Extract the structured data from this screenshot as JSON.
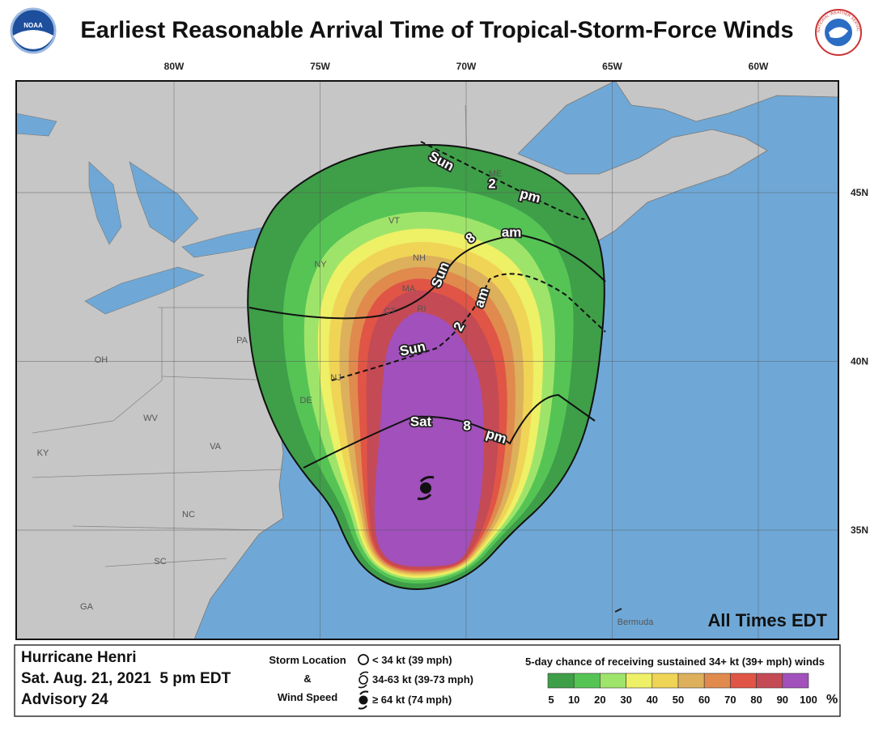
{
  "title": "Earliest Reasonable Arrival Time of Tropical-Storm-Force Winds",
  "logos": {
    "left": "NOAA",
    "right": "NATIONAL WEATHER SERVICE"
  },
  "map": {
    "longitudes": [
      {
        "value": -80,
        "label": "80W"
      },
      {
        "value": -75,
        "label": "75W"
      },
      {
        "value": -70,
        "label": "70W"
      },
      {
        "value": -65,
        "label": "65W"
      },
      {
        "value": -60,
        "label": "60W"
      }
    ],
    "latitudes": [
      {
        "value": 45,
        "label": "45N"
      },
      {
        "value": 40,
        "label": "40N"
      },
      {
        "value": 35,
        "label": "35N"
      }
    ],
    "places": [
      "ME",
      "VT",
      "NH",
      "NY",
      "MA",
      "CT",
      "RI",
      "PA",
      "NJ",
      "DE",
      "OH",
      "WV",
      "VA",
      "KY",
      "NC",
      "SC",
      "GA",
      "Bermuda"
    ],
    "arrival_times": [
      {
        "day": "Sun",
        "hour": "2",
        "period": "pm"
      },
      {
        "day": "Sun",
        "hour": "8",
        "period": "am"
      },
      {
        "day": "Sun",
        "hour": "2",
        "period": "am"
      },
      {
        "day": "Sat",
        "hour": "8",
        "period": "pm"
      }
    ],
    "note": "All Times EDT"
  },
  "legend": {
    "storm": {
      "name": "Hurricane Henri",
      "date": "Sat. Aug. 21, 2021  5 pm EDT",
      "advisory": "Advisory 24"
    },
    "key": {
      "title": [
        "Storm Location",
        "&",
        "Wind Speed"
      ],
      "items": [
        "< 34 kt (39 mph)",
        "34-63 kt (39-73 mph)",
        "≥ 64 kt (74 mph)"
      ]
    },
    "probability": {
      "title": "5-day chance of receiving sustained 34+ kt (39+ mph) winds",
      "ticks": [
        5,
        10,
        20,
        30,
        40,
        50,
        60,
        70,
        80,
        90,
        100
      ],
      "unit": "%",
      "colors": [
        "#3f9e48",
        "#55c455",
        "#9fe46a",
        "#eef066",
        "#f0d456",
        "#ddb05c",
        "#e08a4e",
        "#e05545",
        "#c44a55",
        "#a150bc"
      ]
    }
  }
}
